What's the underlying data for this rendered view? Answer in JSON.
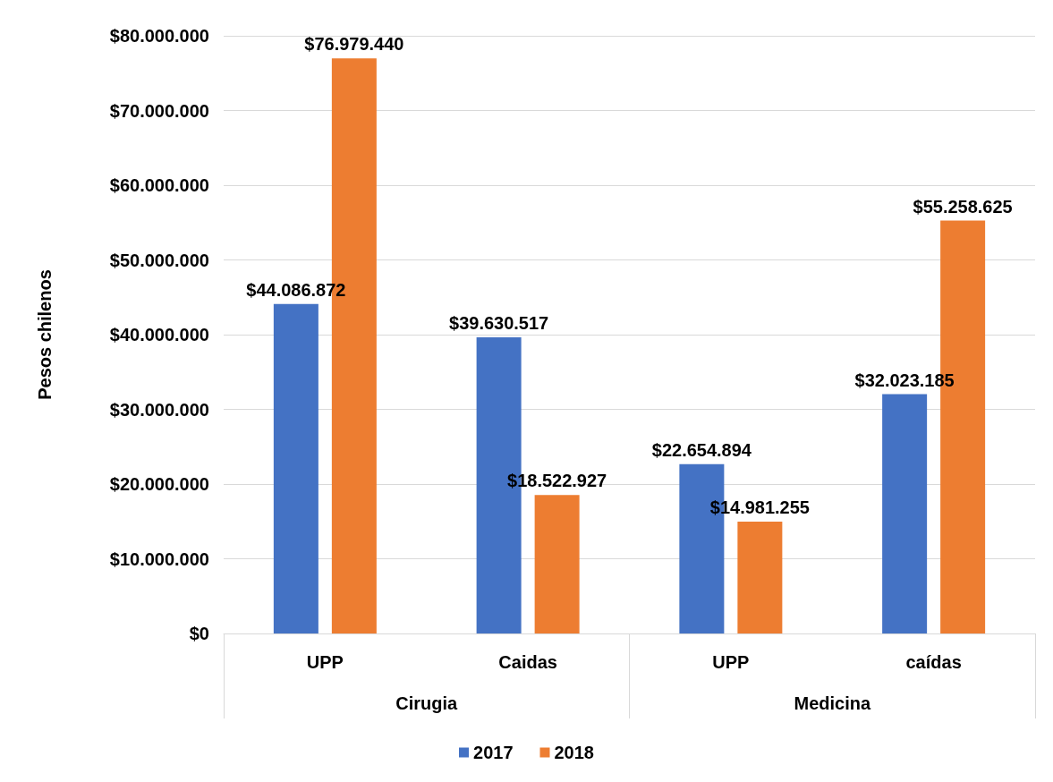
{
  "chart_data": {
    "type": "bar",
    "ylabel": "Pesos chilenos",
    "categories": [
      "UPP",
      "Caidas",
      "UPP",
      "caídas"
    ],
    "annotations": [
      "Cirugia",
      "Medicina"
    ],
    "series": [
      {
        "name": "2017",
        "color": "#4472c4",
        "values": [
          44086872,
          39630517,
          22654894,
          32023185
        ],
        "value_labels": [
          "$44.086.872",
          "$39.630.517",
          "$22.654.894",
          "$32.023.185"
        ]
      },
      {
        "name": "2018",
        "color": "#ed7d31",
        "values": [
          76979440,
          18522927,
          14981255,
          55258625
        ],
        "value_labels": [
          "$76.979.440",
          "$18.522.927",
          "$14.981.255",
          "$55.258.625"
        ]
      }
    ],
    "ylim": [
      0,
      80000000
    ],
    "yticks": [
      {
        "value": 0,
        "label": "$0"
      },
      {
        "value": 10000000,
        "label": "$10.000.000"
      },
      {
        "value": 20000000,
        "label": "$20.000.000"
      },
      {
        "value": 30000000,
        "label": "$30.000.000"
      },
      {
        "value": 40000000,
        "label": "$40.000.000"
      },
      {
        "value": 50000000,
        "label": "$50.000.000"
      },
      {
        "value": 60000000,
        "label": "$60.000.000"
      },
      {
        "value": 70000000,
        "label": "$70.000.000"
      },
      {
        "value": 80000000,
        "label": "$80.000.000"
      }
    ],
    "grid": "y",
    "legend": "bottom"
  }
}
